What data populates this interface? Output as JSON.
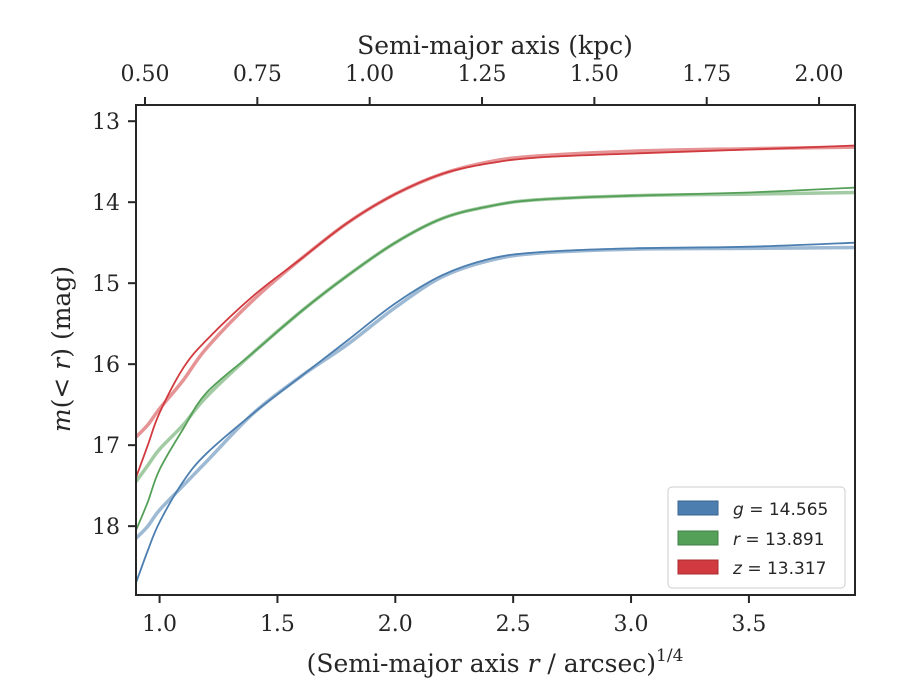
{
  "chart_data": {
    "type": "line",
    "xlabel_prefix": "(Semi-major axis ",
    "xlabel_var": "r",
    "xlabel_suffix": " / arcsec)",
    "xlabel_exp": "1/4",
    "ylabel_var_prefix": "m",
    "ylabel_var_mid": "(< ",
    "ylabel_var": "r",
    "ylabel_suffix": ") (mag)",
    "top_xlabel": "Semi-major axis (kpc)",
    "xlim": [
      0.9,
      3.95
    ],
    "ylim": [
      18.85,
      12.8
    ],
    "y_inverted": true,
    "top_xlim": [
      0.48,
      2.08
    ],
    "x_ticks": [
      "1.0",
      "1.5",
      "2.0",
      "2.5",
      "3.0",
      "3.5"
    ],
    "y_ticks": [
      "13",
      "14",
      "15",
      "16",
      "17",
      "18"
    ],
    "top_x_ticks": [
      "0.50",
      "0.75",
      "1.00",
      "1.25",
      "1.50",
      "1.75",
      "2.00"
    ],
    "legend_position": "lower-right",
    "series": [
      {
        "name": "g",
        "label_var": "g",
        "label_value": " = 14.565",
        "color": "#4c7fb0",
        "values_a": [
          [
            0.9,
            18.7
          ],
          [
            0.95,
            18.3
          ],
          [
            1.0,
            17.95
          ],
          [
            1.1,
            17.45
          ],
          [
            1.2,
            17.1
          ],
          [
            1.4,
            16.6
          ],
          [
            1.6,
            16.15
          ],
          [
            1.8,
            15.7
          ],
          [
            2.0,
            15.25
          ],
          [
            2.2,
            14.9
          ],
          [
            2.4,
            14.7
          ],
          [
            2.6,
            14.62
          ],
          [
            3.0,
            14.57
          ],
          [
            3.5,
            14.55
          ],
          [
            3.95,
            14.5
          ]
        ],
        "values_b": [
          [
            0.9,
            18.15
          ],
          [
            0.95,
            18.0
          ],
          [
            1.0,
            17.8
          ],
          [
            1.1,
            17.5
          ],
          [
            1.2,
            17.2
          ],
          [
            1.4,
            16.6
          ],
          [
            1.6,
            16.15
          ],
          [
            1.8,
            15.75
          ],
          [
            2.0,
            15.3
          ],
          [
            2.2,
            14.92
          ],
          [
            2.4,
            14.72
          ],
          [
            2.6,
            14.63
          ],
          [
            3.0,
            14.58
          ],
          [
            3.5,
            14.57
          ],
          [
            3.95,
            14.56
          ]
        ]
      },
      {
        "name": "r",
        "label_var": "r",
        "label_value": " = 13.891",
        "color": "#55a058",
        "values_a": [
          [
            0.9,
            18.05
          ],
          [
            0.95,
            17.7
          ],
          [
            1.0,
            17.3
          ],
          [
            1.1,
            16.8
          ],
          [
            1.2,
            16.35
          ],
          [
            1.4,
            15.85
          ],
          [
            1.6,
            15.35
          ],
          [
            1.8,
            14.9
          ],
          [
            2.0,
            14.5
          ],
          [
            2.2,
            14.2
          ],
          [
            2.4,
            14.05
          ],
          [
            2.6,
            13.97
          ],
          [
            3.0,
            13.92
          ],
          [
            3.5,
            13.88
          ],
          [
            3.95,
            13.82
          ]
        ],
        "values_b": [
          [
            0.9,
            17.45
          ],
          [
            0.95,
            17.25
          ],
          [
            1.0,
            17.05
          ],
          [
            1.1,
            16.75
          ],
          [
            1.2,
            16.4
          ],
          [
            1.4,
            15.85
          ],
          [
            1.6,
            15.35
          ],
          [
            1.8,
            14.9
          ],
          [
            2.0,
            14.5
          ],
          [
            2.2,
            14.2
          ],
          [
            2.4,
            14.05
          ],
          [
            2.6,
            13.97
          ],
          [
            3.0,
            13.92
          ],
          [
            3.5,
            13.9
          ],
          [
            3.95,
            13.88
          ]
        ]
      },
      {
        "name": "z",
        "label_var": "z",
        "label_value": " = 13.317",
        "color": "#d13a3e",
        "values_a": [
          [
            0.9,
            17.4
          ],
          [
            0.95,
            17.0
          ],
          [
            1.0,
            16.6
          ],
          [
            1.1,
            16.05
          ],
          [
            1.2,
            15.7
          ],
          [
            1.4,
            15.15
          ],
          [
            1.6,
            14.7
          ],
          [
            1.8,
            14.25
          ],
          [
            2.0,
            13.9
          ],
          [
            2.2,
            13.65
          ],
          [
            2.4,
            13.52
          ],
          [
            2.6,
            13.45
          ],
          [
            3.0,
            13.4
          ],
          [
            3.5,
            13.35
          ],
          [
            3.95,
            13.3
          ]
        ],
        "values_b": [
          [
            0.9,
            16.9
          ],
          [
            0.95,
            16.75
          ],
          [
            1.0,
            16.55
          ],
          [
            1.1,
            16.2
          ],
          [
            1.2,
            15.8
          ],
          [
            1.4,
            15.2
          ],
          [
            1.6,
            14.7
          ],
          [
            1.8,
            14.25
          ],
          [
            2.0,
            13.9
          ],
          [
            2.2,
            13.65
          ],
          [
            2.4,
            13.5
          ],
          [
            2.6,
            13.43
          ],
          [
            3.0,
            13.37
          ],
          [
            3.5,
            13.34
          ],
          [
            3.95,
            13.32
          ]
        ]
      }
    ]
  }
}
